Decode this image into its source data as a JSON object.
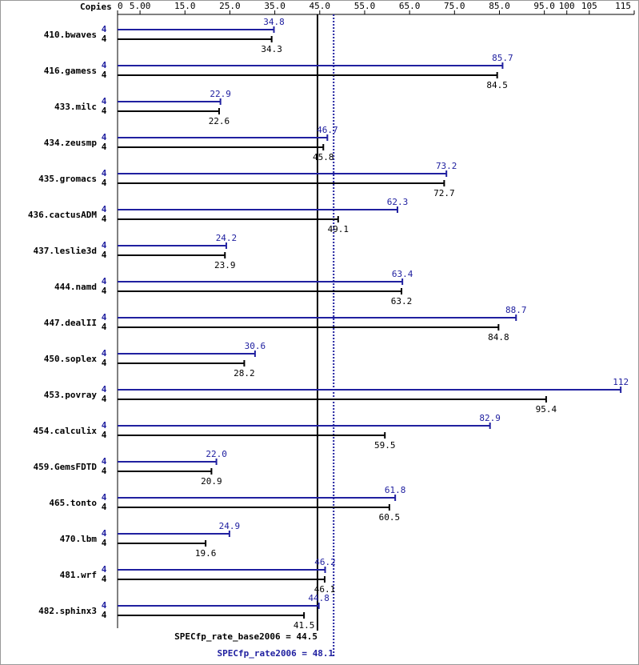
{
  "chart_data": {
    "type": "bar",
    "orientation": "horizontal",
    "copies_label": "Copies",
    "categories": [
      "410.bwaves",
      "416.gamess",
      "433.milc",
      "434.zeusmp",
      "435.gromacs",
      "436.cactusADM",
      "437.leslie3d",
      "444.namd",
      "447.dealII",
      "450.soplex",
      "453.povray",
      "454.calculix",
      "459.GemsFDTD",
      "465.tonto",
      "470.lbm",
      "481.wrf",
      "482.sphinx3"
    ],
    "series": [
      {
        "color": "#2020a0",
        "copies": [
          4,
          4,
          4,
          4,
          4,
          4,
          4,
          4,
          4,
          4,
          4,
          4,
          4,
          4,
          4,
          4,
          4
        ],
        "values": [
          34.8,
          85.7,
          22.9,
          46.7,
          73.2,
          62.3,
          24.2,
          63.4,
          88.7,
          30.6,
          112,
          82.9,
          22.0,
          61.8,
          24.9,
          46.2,
          44.8
        ],
        "value_labels": [
          "34.8",
          "85.7",
          "22.9",
          "46.7",
          "73.2",
          "62.3",
          "24.2",
          "63.4",
          "88.7",
          "30.6",
          "112",
          "82.9",
          "22.0",
          "61.8",
          "24.9",
          "46.2",
          "44.8"
        ]
      },
      {
        "color": "#000000",
        "copies": [
          4,
          4,
          4,
          4,
          4,
          4,
          4,
          4,
          4,
          4,
          4,
          4,
          4,
          4,
          4,
          4,
          4
        ],
        "values": [
          34.3,
          84.5,
          22.6,
          45.8,
          72.7,
          49.1,
          23.9,
          63.2,
          84.8,
          28.2,
          95.4,
          59.5,
          20.9,
          60.5,
          19.6,
          46.1,
          41.5
        ]
      }
    ],
    "xlim": [
      0,
      115
    ],
    "xticks": [
      0,
      {
        "value": 5,
        "label": "5.00"
      },
      {
        "value": 15,
        "label": "15.0"
      },
      {
        "value": 25,
        "label": "25.0"
      },
      {
        "value": 35,
        "label": "35.0"
      },
      {
        "value": 45,
        "label": "45.0"
      },
      {
        "value": 55,
        "label": "55.0"
      },
      {
        "value": 65,
        "label": "65.0"
      },
      {
        "value": 75,
        "label": "75.0"
      },
      {
        "value": 85,
        "label": "85.0"
      },
      {
        "value": 95,
        "label": "95.0"
      },
      100,
      105,
      115
    ],
    "reference_lines": [
      {
        "label": "SPECfp_rate_base2006 =",
        "value": 44.5,
        "color": "#000000",
        "style": "solid"
      },
      {
        "label": "SPECfp_rate2006 =",
        "value": 48.1,
        "color": "#2020a0",
        "style": "dotted"
      }
    ]
  }
}
